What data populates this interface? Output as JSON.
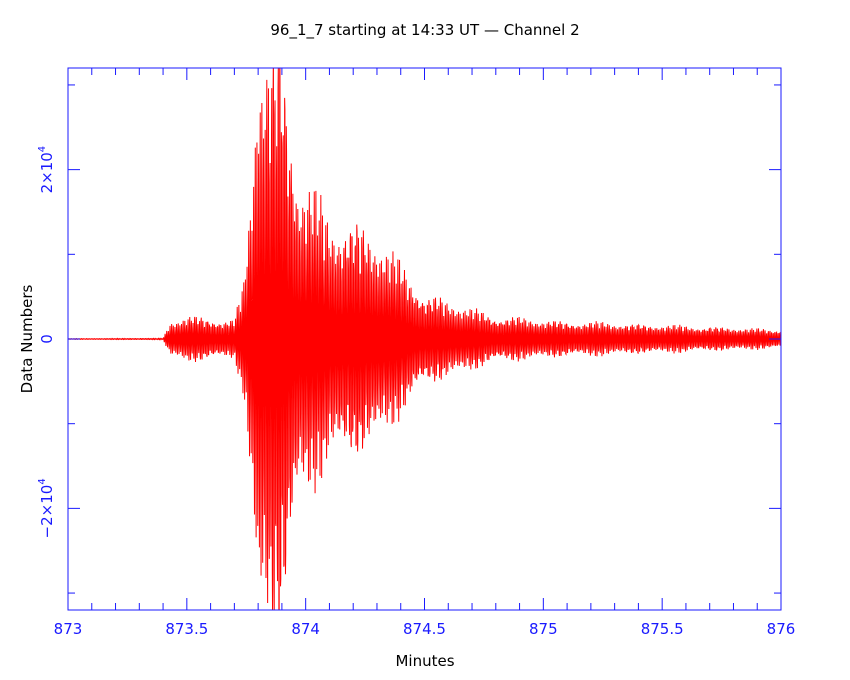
{
  "colors": {
    "axis": "#1a1aff",
    "trace": "#ff0000",
    "background": "#ffffff",
    "text": "#000000"
  },
  "chart_data": {
    "type": "line",
    "title": "96_1_7 starting at 14:33 UT — Channel 2",
    "xlabel": "Minutes",
    "ylabel": "Data Numbers",
    "xlim": [
      873,
      876
    ],
    "ylim": [
      -32000,
      32000
    ],
    "x_ticks": [
      {
        "value": 873,
        "label": "873"
      },
      {
        "value": 873.5,
        "label": "873.5"
      },
      {
        "value": 874,
        "label": "874"
      },
      {
        "value": 874.5,
        "label": "874.5"
      },
      {
        "value": 875,
        "label": "875"
      },
      {
        "value": 875.5,
        "label": "875.5"
      },
      {
        "value": 876,
        "label": "876"
      }
    ],
    "y_ticks": [
      {
        "value": -20000,
        "label": "−2×10",
        "exp": "4"
      },
      {
        "value": 0,
        "label": "0",
        "exp": ""
      },
      {
        "value": 20000,
        "label": "2×10",
        "exp": "4"
      }
    ],
    "grid": false,
    "legend": "none",
    "series": [
      {
        "color": "#ff0000",
        "envelope": [
          [
            873.0,
            40
          ],
          [
            873.4,
            80
          ],
          [
            873.43,
            1800
          ],
          [
            873.5,
            2500
          ],
          [
            873.6,
            2200
          ],
          [
            873.7,
            2000
          ],
          [
            873.74,
            6000
          ],
          [
            873.77,
            16000
          ],
          [
            873.8,
            32000
          ],
          [
            873.85,
            32000
          ],
          [
            873.9,
            32000
          ],
          [
            873.93,
            25000
          ],
          [
            873.97,
            18000
          ],
          [
            874.05,
            15000
          ],
          [
            874.1,
            13000
          ],
          [
            874.2,
            13000
          ],
          [
            874.3,
            11000
          ],
          [
            874.4,
            8000
          ],
          [
            874.5,
            5000
          ],
          [
            874.6,
            4000
          ],
          [
            874.8,
            2500
          ],
          [
            875.0,
            2000
          ],
          [
            875.5,
            1500
          ],
          [
            876.0,
            1000
          ]
        ],
        "frequency_cycles_per_minute": 145
      }
    ]
  }
}
